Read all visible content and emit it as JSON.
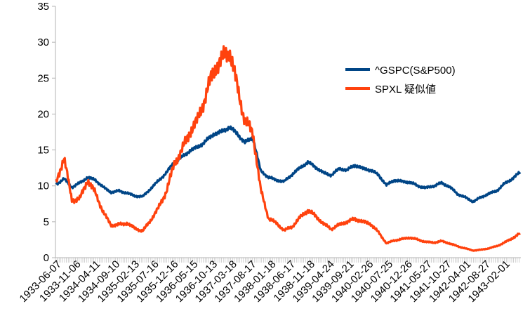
{
  "chart_data": {
    "type": "line",
    "title": "",
    "xlabel": "",
    "ylabel": "",
    "ylim": [
      0,
      35
    ],
    "yticks": [
      0,
      5,
      10,
      15,
      20,
      25,
      30,
      35
    ],
    "grid": false,
    "legend_placement": "right",
    "x_tick_labels": [
      "1933-06-07",
      "1933-11-06",
      "1934-04-11",
      "1934-09-10",
      "1935-02-13",
      "1935-07-16",
      "1935-12-16",
      "1936-05-15",
      "1936-10-13",
      "1937-03-18",
      "1937-08-17",
      "1938-01-18",
      "1938-06-17",
      "1938-11-18",
      "1939-04-24",
      "1939-09-21",
      "1940-02-26",
      "1940-07-25",
      "1940-12-26",
      "1941-05-27",
      "1941-10-27",
      "1942-04-01",
      "1942-08-27",
      "1943-02-01"
    ],
    "x": [
      "1933-06",
      "1933-08",
      "1933-10",
      "1933-12",
      "1934-02",
      "1934-04",
      "1934-06",
      "1934-08",
      "1934-10",
      "1934-12",
      "1935-02",
      "1935-04",
      "1935-06",
      "1935-08",
      "1935-10",
      "1935-12",
      "1936-02",
      "1936-04",
      "1936-06",
      "1936-08",
      "1936-10",
      "1936-12",
      "1937-02",
      "1937-04",
      "1937-06",
      "1937-08",
      "1937-10",
      "1937-12",
      "1938-02",
      "1938-04",
      "1938-06",
      "1938-08",
      "1938-10",
      "1938-12",
      "1939-02",
      "1939-04",
      "1939-06",
      "1939-08",
      "1939-10",
      "1939-12",
      "1940-02",
      "1940-04",
      "1940-06",
      "1940-08",
      "1940-10",
      "1940-12",
      "1941-02",
      "1941-04",
      "1941-06",
      "1941-08",
      "1941-10",
      "1941-12",
      "1942-02",
      "1942-04",
      "1942-06",
      "1942-08",
      "1942-10",
      "1942-12",
      "1943-02",
      "1943-04"
    ],
    "series": [
      {
        "name": "^GSPC(S&P500)",
        "color": "#004586",
        "values": [
          10.2,
          11.0,
          9.8,
          10.4,
          11.2,
          10.8,
          9.8,
          9.1,
          9.3,
          9.0,
          8.6,
          8.5,
          9.6,
          10.7,
          11.8,
          13.3,
          14.0,
          14.9,
          15.4,
          16.2,
          17.2,
          17.5,
          18.2,
          17.3,
          16.0,
          16.8,
          12.1,
          11.2,
          10.8,
          10.6,
          11.6,
          12.5,
          13.3,
          12.6,
          11.8,
          11.5,
          12.4,
          12.2,
          12.9,
          12.4,
          12.2,
          11.5,
          10.1,
          10.8,
          10.6,
          10.5,
          10.0,
          9.7,
          10.0,
          10.4,
          9.9,
          8.9,
          8.4,
          7.8,
          8.4,
          8.9,
          9.3,
          10.3,
          11.0,
          11.9
        ]
      },
      {
        "name": "SPXL 疑似値",
        "color": "#ff420e",
        "values": [
          10.4,
          14.0,
          8.0,
          8.2,
          10.8,
          9.0,
          6.3,
          4.5,
          4.6,
          4.8,
          4.1,
          3.7,
          5.2,
          6.9,
          9.2,
          13.0,
          15.0,
          17.5,
          19.2,
          22.5,
          26.0,
          27.5,
          29.0,
          24.0,
          19.0,
          17.5,
          9.5,
          5.5,
          4.8,
          3.8,
          4.3,
          5.6,
          6.6,
          5.8,
          4.7,
          4.0,
          4.6,
          5.0,
          5.4,
          5.0,
          4.7,
          3.5,
          2.0,
          2.4,
          2.6,
          2.8,
          2.5,
          2.2,
          2.1,
          2.3,
          2.0,
          1.6,
          1.3,
          1.0,
          1.1,
          1.3,
          1.6,
          2.1,
          2.7,
          3.4
        ]
      }
    ]
  }
}
